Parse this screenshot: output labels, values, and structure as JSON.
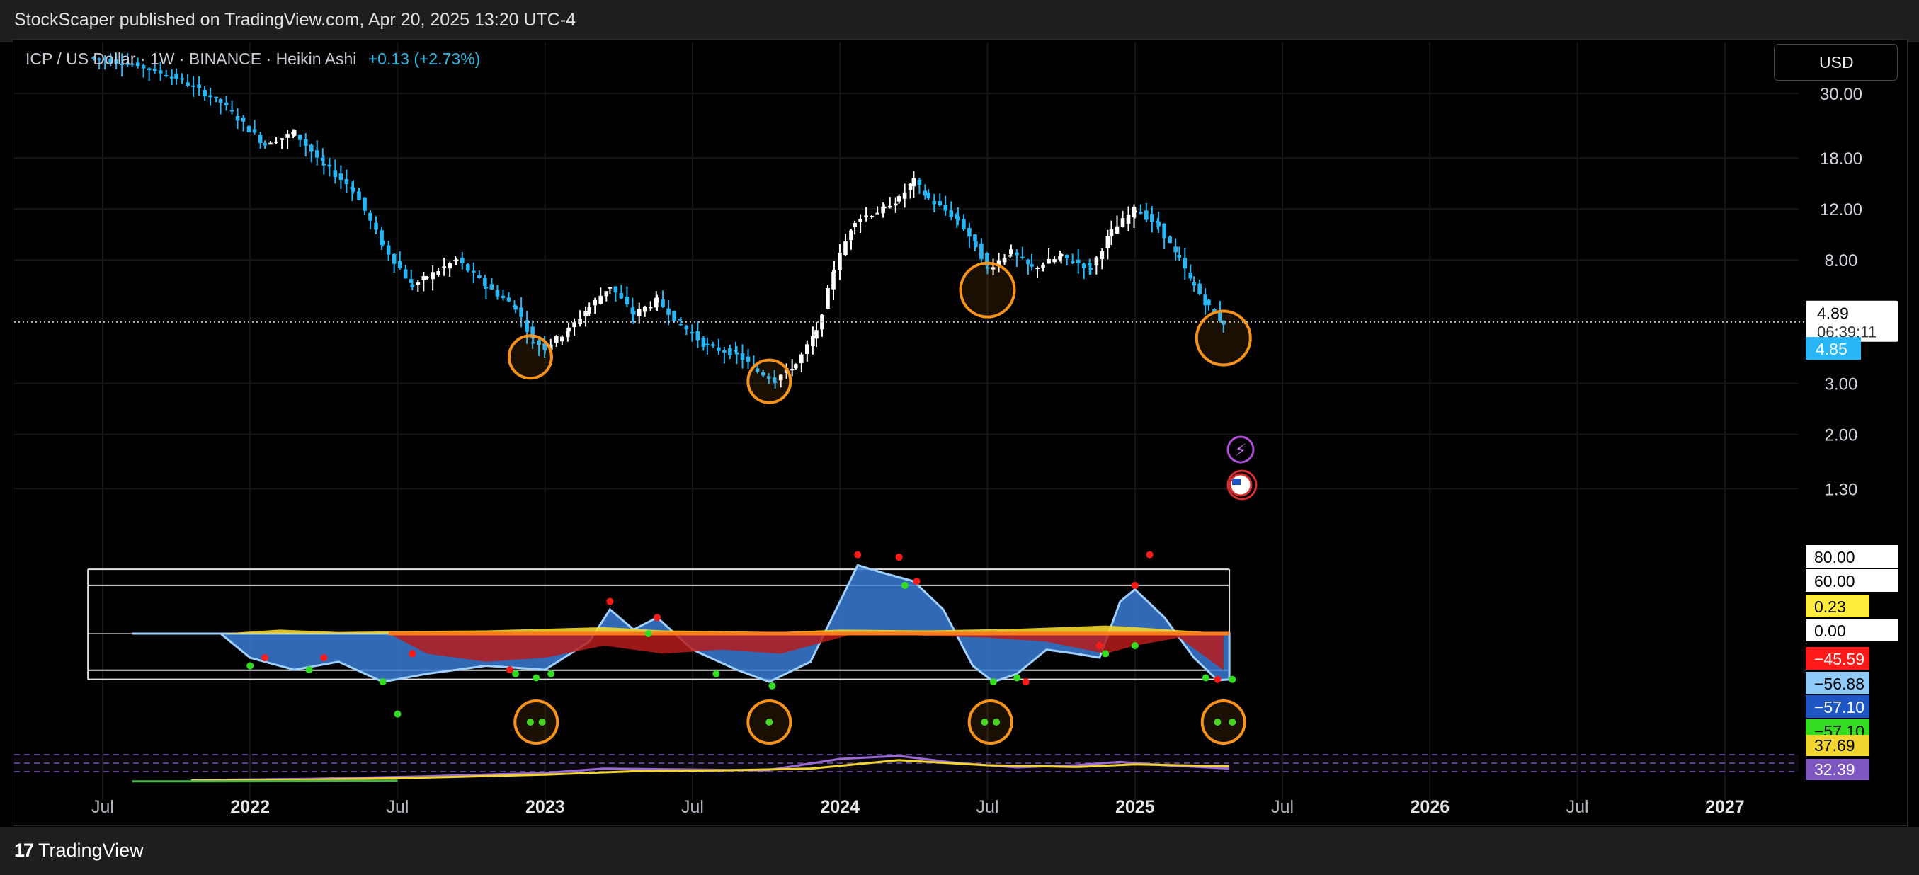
{
  "header": {
    "published": "StockScaper published on TradingView.com, Apr 20, 2025 13:20 UTC-4"
  },
  "legend": {
    "symbol": "ICP / US Dollar · 1W · BINANCE · Heikin Ashi",
    "change": "+0.13 (+2.73%)"
  },
  "currency": "USD",
  "footer": {
    "brand": "TradingView"
  },
  "colors": {
    "up": "#ffffff",
    "down": "#29b6f6",
    "circle": "#f7931a",
    "background": "#000000"
  },
  "chart_data": [
    {
      "type": "candlestick",
      "title": "ICP / US Dollar · 1W · BINANCE · Heikin Ashi",
      "scale": "log",
      "ylim": [
        1.1,
        45
      ],
      "price_ticks": [
        "30.00",
        "18.00",
        "12.00",
        "8.00",
        "3.00",
        "2.00",
        "1.30"
      ],
      "time_ticks": [
        "Jul",
        "2022",
        "Jul",
        "2023",
        "Jul",
        "2024",
        "Jul",
        "2025",
        "Jul",
        "2026",
        "Jul",
        "2027"
      ],
      "time_values": [
        2021.5,
        2022.0,
        2022.5,
        2023.0,
        2023.5,
        2024.0,
        2024.5,
        2025.0,
        2025.5,
        2026.0,
        2026.5,
        2027.0
      ],
      "xlim": [
        2021.2,
        2027.25
      ],
      "last_price_label": "4.89",
      "last_price": 4.89,
      "countdown": "06:39:11",
      "secondary_price_label": "4.85",
      "secondary_price": 4.85,
      "price_path": [
        [
          2021.45,
          40
        ],
        [
          2021.6,
          38
        ],
        [
          2021.75,
          34
        ],
        [
          2021.9,
          28
        ],
        [
          2022.05,
          20
        ],
        [
          2022.15,
          22
        ],
        [
          2022.25,
          17
        ],
        [
          2022.35,
          14
        ],
        [
          2022.45,
          9
        ],
        [
          2022.55,
          6.5
        ],
        [
          2022.6,
          7
        ],
        [
          2022.7,
          8
        ],
        [
          2022.8,
          6.5
        ],
        [
          2022.9,
          5.5
        ],
        [
          2022.96,
          4.2
        ],
        [
          2023.0,
          4.0
        ],
        [
          2023.08,
          4.6
        ],
        [
          2023.15,
          5.5
        ],
        [
          2023.22,
          6.5
        ],
        [
          2023.3,
          5.2
        ],
        [
          2023.38,
          5.8
        ],
        [
          2023.46,
          4.8
        ],
        [
          2023.55,
          4.0
        ],
        [
          2023.65,
          3.8
        ],
        [
          2023.72,
          3.3
        ],
        [
          2023.78,
          3.1
        ],
        [
          2023.85,
          3.5
        ],
        [
          2023.92,
          4.5
        ],
        [
          2023.98,
          7.5
        ],
        [
          2024.05,
          11
        ],
        [
          2024.15,
          12
        ],
        [
          2024.2,
          13
        ],
        [
          2024.25,
          15
        ],
        [
          2024.3,
          13
        ],
        [
          2024.4,
          11
        ],
        [
          2024.46,
          9
        ],
        [
          2024.5,
          7.5
        ],
        [
          2024.58,
          8.5
        ],
        [
          2024.65,
          7.5
        ],
        [
          2024.75,
          8.2
        ],
        [
          2024.85,
          7.5
        ],
        [
          2024.92,
          10
        ],
        [
          2025.0,
          12
        ],
        [
          2025.08,
          10.5
        ],
        [
          2025.15,
          8
        ],
        [
          2025.2,
          6.5
        ],
        [
          2025.25,
          5.5
        ],
        [
          2025.3,
          4.85
        ]
      ],
      "markers": [
        {
          "x": 2022.95,
          "y": 3.7
        },
        {
          "x": 2023.76,
          "y": 3.05
        },
        {
          "x": 2024.5,
          "y": 6.3
        },
        {
          "x": 2025.3,
          "y": 4.3
        }
      ]
    },
    {
      "type": "area",
      "levels": [
        80,
        60,
        0,
        -45.59,
        -56.88
      ],
      "ylim": [
        -110,
        110
      ],
      "value_labels": [
        {
          "text": "80.00",
          "value": 80,
          "bg": "#ffffff",
          "fg": "#000000"
        },
        {
          "text": "60.00",
          "value": 60,
          "bg": "#ffffff",
          "fg": "#000000"
        },
        {
          "text": "0.23",
          "value": 0.23,
          "bg": "#ffeb3b",
          "fg": "#000000"
        },
        {
          "text": "0.00",
          "value": 0,
          "bg": "#ffffff",
          "fg": "#000000"
        },
        {
          "text": "−45.59",
          "value": -45.59,
          "bg": "#ff1a1a",
          "fg": "#ffffff"
        },
        {
          "text": "−56.88",
          "value": -56.88,
          "bg": "#90caf9",
          "fg": "#000000"
        },
        {
          "text": "−57.10",
          "value": -57.1,
          "bg": "#1e56c4",
          "fg": "#ffffff"
        },
        {
          "text": "−57.10",
          "value": -57.1,
          "bg": "#33dd22",
          "fg": "#000000"
        }
      ],
      "series": [
        {
          "fill": "#3a7bd5",
          "points": [
            [
              2021.6,
              0
            ],
            [
              2021.9,
              0
            ],
            [
              2022.0,
              -30
            ],
            [
              2022.15,
              -45
            ],
            [
              2022.3,
              -35
            ],
            [
              2022.45,
              -60
            ],
            [
              2022.6,
              -50
            ],
            [
              2022.8,
              -40
            ],
            [
              2023.0,
              -45
            ],
            [
              2023.15,
              -10
            ],
            [
              2023.22,
              30
            ],
            [
              2023.3,
              5
            ],
            [
              2023.38,
              20
            ],
            [
              2023.5,
              -20
            ],
            [
              2023.65,
              -45
            ],
            [
              2023.76,
              -60
            ],
            [
              2023.9,
              -35
            ],
            [
              2024.0,
              40
            ],
            [
              2024.06,
              85
            ],
            [
              2024.15,
              75
            ],
            [
              2024.25,
              65
            ],
            [
              2024.35,
              30
            ],
            [
              2024.45,
              -40
            ],
            [
              2024.52,
              -60
            ],
            [
              2024.6,
              -50
            ],
            [
              2024.7,
              -20
            ],
            [
              2024.8,
              -25
            ],
            [
              2024.88,
              -30
            ],
            [
              2024.95,
              40
            ],
            [
              2025.0,
              55
            ],
            [
              2025.1,
              20
            ],
            [
              2025.2,
              -30
            ],
            [
              2025.28,
              -58
            ],
            [
              2025.32,
              -57.1
            ]
          ]
        },
        {
          "fill": "#b71c1c",
          "points": [
            [
              2022.47,
              0
            ],
            [
              2022.6,
              -25
            ],
            [
              2022.8,
              -35
            ],
            [
              2023.0,
              -30
            ],
            [
              2023.2,
              -15
            ],
            [
              2023.4,
              -25
            ],
            [
              2023.6,
              -20
            ],
            [
              2023.8,
              -25
            ],
            [
              2023.95,
              -10
            ],
            [
              2024.05,
              0
            ],
            [
              2024.5,
              -5
            ],
            [
              2024.7,
              -10
            ],
            [
              2024.9,
              -25
            ],
            [
              2025.0,
              -15
            ],
            [
              2025.15,
              -5
            ],
            [
              2025.3,
              -45.59
            ]
          ]
        },
        {
          "fill": "#f2d52e",
          "points": [
            [
              2021.9,
              0
            ],
            [
              2022.1,
              5
            ],
            [
              2022.3,
              2
            ],
            [
              2022.5,
              3
            ],
            [
              2022.8,
              4
            ],
            [
              2023.0,
              6
            ],
            [
              2023.2,
              8
            ],
            [
              2023.4,
              4
            ],
            [
              2023.6,
              3
            ],
            [
              2023.8,
              2
            ],
            [
              2024.0,
              5
            ],
            [
              2024.3,
              4
            ],
            [
              2024.6,
              6
            ],
            [
              2024.9,
              10
            ],
            [
              2025.0,
              8
            ],
            [
              2025.2,
              3
            ],
            [
              2025.32,
              0.23
            ]
          ]
        }
      ],
      "dots_red": [
        [
          2022.05,
          -30
        ],
        [
          2022.25,
          -30
        ],
        [
          2022.55,
          -25
        ],
        [
          2022.88,
          -45
        ],
        [
          2023.22,
          40
        ],
        [
          2023.38,
          20
        ],
        [
          2024.06,
          98
        ],
        [
          2024.2,
          95
        ],
        [
          2024.26,
          65
        ],
        [
          2024.63,
          -60
        ],
        [
          2024.88,
          -15
        ],
        [
          2025.05,
          98
        ],
        [
          2025.0,
          60
        ],
        [
          2025.28,
          -57
        ]
      ],
      "dots_green": [
        [
          2022.0,
          -40
        ],
        [
          2022.2,
          -45
        ],
        [
          2022.45,
          -60
        ],
        [
          2022.5,
          -100
        ],
        [
          2022.9,
          -50
        ],
        [
          2022.97,
          -55
        ],
        [
          2023.02,
          -50
        ],
        [
          2023.35,
          0
        ],
        [
          2023.58,
          -50
        ],
        [
          2023.77,
          -65
        ],
        [
          2024.22,
          60
        ],
        [
          2024.52,
          -60
        ],
        [
          2024.6,
          -55
        ],
        [
          2024.9,
          -25
        ],
        [
          2025.0,
          -15
        ],
        [
          2025.24,
          -55
        ],
        [
          2025.33,
          -57
        ],
        [
          2022.95,
          -110
        ],
        [
          2022.99,
          -110
        ],
        [
          2023.76,
          -110
        ],
        [
          2024.49,
          -110
        ],
        [
          2024.53,
          -110
        ],
        [
          2025.28,
          -110
        ],
        [
          2025.33,
          -110
        ]
      ],
      "markers": [
        {
          "x": 2022.97,
          "y": -110
        },
        {
          "x": 2023.76,
          "y": -110
        },
        {
          "x": 2024.51,
          "y": -110
        },
        {
          "x": 2025.3,
          "y": -110
        }
      ]
    },
    {
      "type": "line",
      "ylim": [
        0,
        100
      ],
      "value_labels": [
        {
          "text": "37.69",
          "value": 37.69,
          "bg": "#f2d52e",
          "fg": "#000000"
        },
        {
          "text": "32.39",
          "value": 32.39,
          "bg": "#7e57c2",
          "fg": "#ffffff"
        }
      ],
      "series": [
        {
          "color": "#9c6bd6",
          "points": [
            [
              2021.8,
              5
            ],
            [
              2022.2,
              8
            ],
            [
              2022.6,
              14
            ],
            [
              2023.0,
              22
            ],
            [
              2023.2,
              32
            ],
            [
              2023.5,
              30
            ],
            [
              2023.75,
              28
            ],
            [
              2024.0,
              55
            ],
            [
              2024.2,
              62
            ],
            [
              2024.4,
              45
            ],
            [
              2024.6,
              35
            ],
            [
              2024.8,
              40
            ],
            [
              2024.95,
              48
            ],
            [
              2025.1,
              40
            ],
            [
              2025.32,
              32.39
            ]
          ]
        },
        {
          "color": "#f2d52e",
          "points": [
            [
              2021.8,
              4
            ],
            [
              2022.2,
              6
            ],
            [
              2022.6,
              11
            ],
            [
              2023.0,
              18
            ],
            [
              2023.3,
              26
            ],
            [
              2023.6,
              28
            ],
            [
              2023.9,
              32
            ],
            [
              2024.2,
              52
            ],
            [
              2024.5,
              40
            ],
            [
              2024.8,
              36
            ],
            [
              2025.0,
              42
            ],
            [
              2025.32,
              37.69
            ]
          ]
        },
        {
          "color": "#4caf50",
          "points": [
            [
              2021.6,
              2
            ],
            [
              2021.9,
              2
            ],
            [
              2022.2,
              3
            ],
            [
              2022.5,
              4
            ]
          ]
        }
      ]
    }
  ]
}
